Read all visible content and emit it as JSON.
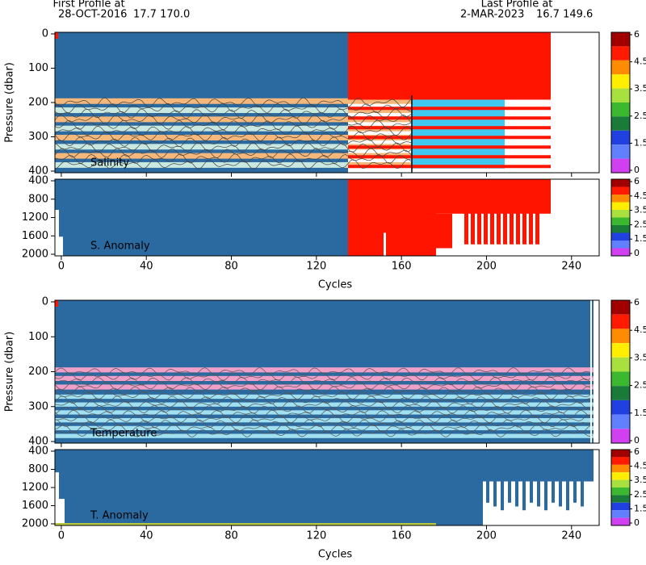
{
  "header": {
    "first_label": "First Profile at",
    "first_date": "28-OCT-2016",
    "first_pos": "17.7 170.0",
    "last_label": "Last Profile at",
    "last_date": "2-MAR-2023",
    "last_pos": "16.7 149.6"
  },
  "chart_data": [
    {
      "type": "heatmap",
      "label": "Salinity",
      "ylabel": "Pressure (dbar)",
      "ylim": [
        0,
        400
      ],
      "yticks": [
        0,
        100,
        200,
        300,
        400
      ],
      "xlim": [
        -3,
        253
      ],
      "xticks": [
        0,
        40,
        80,
        120,
        160,
        200,
        240
      ],
      "colorbar_ticks": [
        0,
        1.5,
        2.5,
        3.5,
        4.5,
        6
      ]
    },
    {
      "type": "heatmap",
      "label": "S. Anomaly",
      "xlabel": "Cycles",
      "ylim": [
        400,
        2000
      ],
      "yticks": [
        400,
        800,
        1200,
        1600,
        2000
      ],
      "xlim": [
        -3,
        253
      ],
      "xticks": [
        0,
        40,
        80,
        120,
        160,
        200,
        240
      ],
      "colorbar_ticks": [
        0,
        1.5,
        2.5,
        3.5,
        4.5,
        6
      ]
    },
    {
      "type": "heatmap",
      "label": "Temperature",
      "ylabel": "Pressure (dbar)",
      "ylim": [
        0,
        400
      ],
      "yticks": [
        0,
        100,
        200,
        300,
        400
      ],
      "xlim": [
        -3,
        253
      ],
      "xticks": [
        0,
        40,
        80,
        120,
        160,
        200,
        240
      ],
      "colorbar_ticks": [
        0,
        1.5,
        2.5,
        3.5,
        4.5,
        6
      ]
    },
    {
      "type": "heatmap",
      "label": "T. Anomaly",
      "xlabel": "Cycles",
      "ylim": [
        400,
        2000
      ],
      "yticks": [
        400,
        800,
        1200,
        1600,
        2000
      ],
      "xlim": [
        -3,
        253
      ],
      "xticks": [
        0,
        40,
        80,
        120,
        160,
        200,
        240
      ],
      "colorbar_ticks": [
        0,
        1.5,
        2.5,
        3.5,
        4.5,
        6
      ]
    }
  ]
}
